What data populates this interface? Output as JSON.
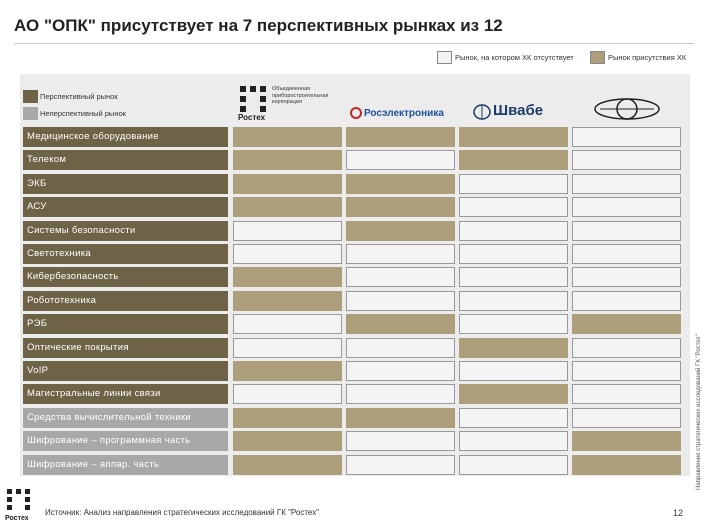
{
  "title": "АО \"ОПК\" присутствует на 7 перспективных рынках из 12",
  "legend": {
    "absent": "Рынок, на котором ХК отсутствует",
    "present": "Рынок присутствия ХК",
    "perspective": "Перспективный рынок",
    "nonperspective": "Неперспективный рынок"
  },
  "columns": [
    {
      "logo_lines": [
        "Объединенная",
        "приборостроительная",
        "корпорация"
      ],
      "logo_brand": "Ростех"
    },
    {
      "name": "Росэлектроника"
    },
    {
      "name": "Швабе"
    },
    {}
  ],
  "rows": [
    {
      "label": "Медицинское оборудование",
      "perspective": true,
      "cells": [
        true,
        true,
        true,
        false
      ]
    },
    {
      "label": "Телеком",
      "perspective": true,
      "cells": [
        true,
        false,
        true,
        false
      ]
    },
    {
      "label": "ЭКБ",
      "perspective": true,
      "cells": [
        true,
        true,
        false,
        false
      ]
    },
    {
      "label": "АСУ",
      "perspective": true,
      "cells": [
        true,
        true,
        false,
        false
      ]
    },
    {
      "label": "Системы безопасности",
      "perspective": true,
      "cells": [
        false,
        true,
        false,
        false
      ]
    },
    {
      "label": "Светотехника",
      "perspective": true,
      "cells": [
        false,
        false,
        false,
        false
      ]
    },
    {
      "label": "Кибербезопасность",
      "perspective": true,
      "cells": [
        true,
        false,
        false,
        false
      ]
    },
    {
      "label": "Робототехника",
      "perspective": true,
      "cells": [
        true,
        false,
        false,
        false
      ]
    },
    {
      "label": "РЭБ",
      "perspective": true,
      "cells": [
        false,
        true,
        false,
        true
      ]
    },
    {
      "label": "Оптические покрытия",
      "perspective": true,
      "cells": [
        false,
        false,
        true,
        false
      ]
    },
    {
      "label": "VoIP",
      "perspective": true,
      "cells": [
        true,
        false,
        false,
        false
      ]
    },
    {
      "label": "Магистральные линии связи",
      "perspective": true,
      "cells": [
        false,
        false,
        true,
        false
      ]
    },
    {
      "label": "Средства вычислительной техники",
      "perspective": false,
      "cells": [
        true,
        true,
        false,
        false
      ]
    },
    {
      "label": "Шифрование – программная часть",
      "perspective": false,
      "cells": [
        true,
        false,
        false,
        true
      ]
    },
    {
      "label": "Шифрование – аппар. часть",
      "perspective": false,
      "cells": [
        true,
        false,
        false,
        true
      ]
    }
  ],
  "side_note": "Направление стратегических исследований ГК \"Ростех\"",
  "footer": {
    "source": "Источник: Анализ направления стратегических исследований ГК \"Ростех\"",
    "page": "12",
    "brand": "Ростех"
  }
}
